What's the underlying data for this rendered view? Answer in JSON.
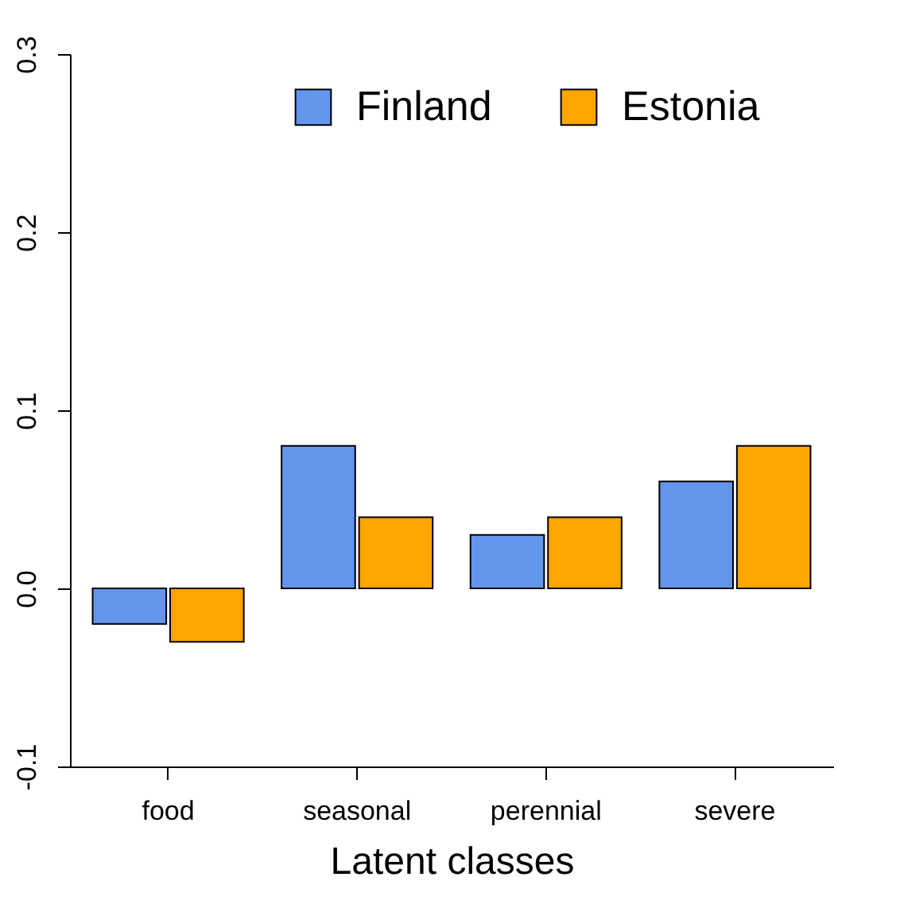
{
  "chart_data": {
    "type": "bar",
    "xlabel": "Latent classes",
    "categories": [
      "food",
      "seasonal",
      "perennial",
      "severe"
    ],
    "series": [
      {
        "name": "Finland",
        "color": "#6495ed",
        "values": [
          -0.02,
          0.08,
          0.03,
          0.06
        ]
      },
      {
        "name": "Estonia",
        "color": "#ffa500",
        "values": [
          -0.03,
          0.04,
          0.04,
          0.08
        ]
      }
    ],
    "ylim": [
      -0.1,
      0.3
    ],
    "yticks": [
      {
        "value": -0.1,
        "label": "-0.1"
      },
      {
        "value": 0,
        "label": "0.0"
      },
      0.1,
      0.2,
      0.3
    ],
    "legend": "top"
  }
}
